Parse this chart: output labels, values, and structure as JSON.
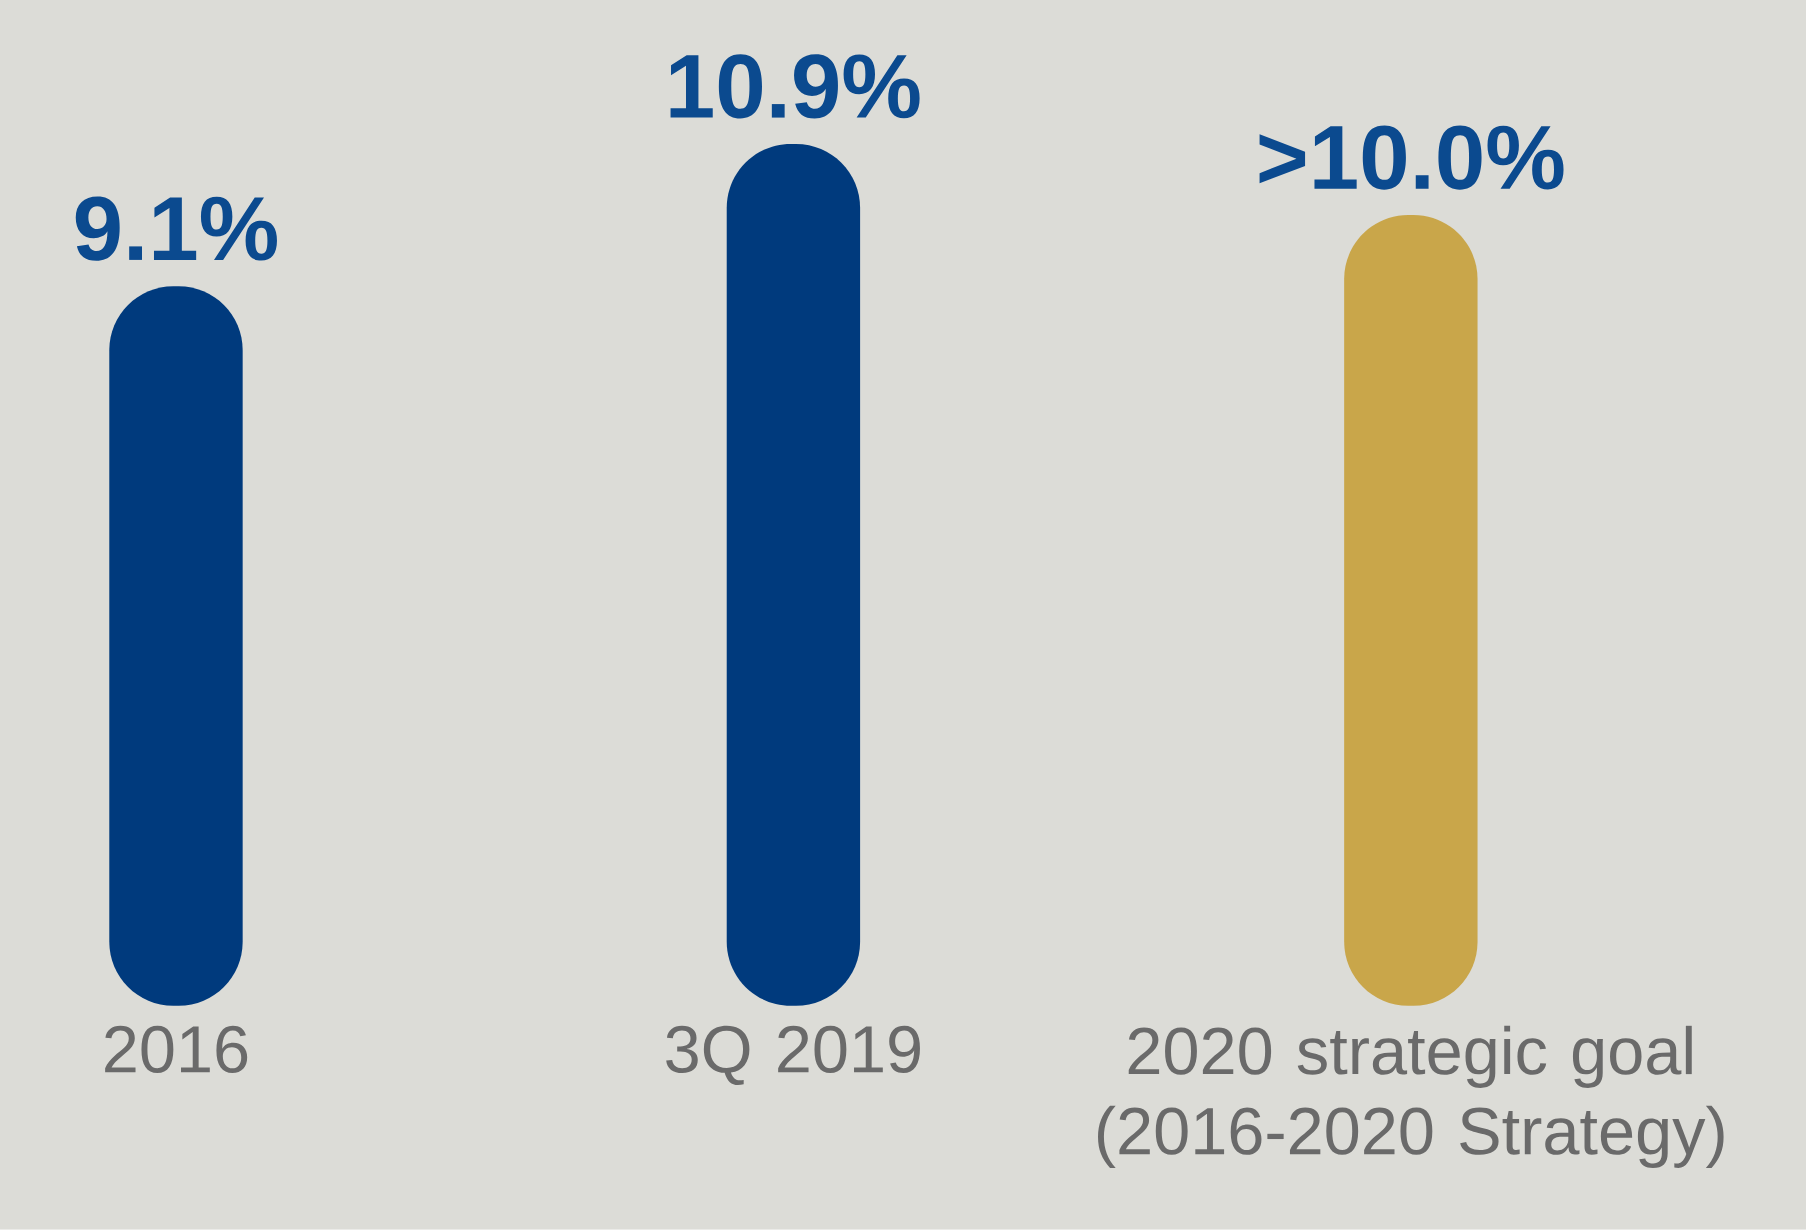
{
  "chart_data": {
    "type": "bar",
    "categories": [
      "2016",
      "3Q 2019",
      "2020 strategic goal (2016-2020 Strategy)"
    ],
    "values": [
      9.1,
      10.9,
      10.0
    ],
    "value_labels": [
      "9.1%",
      "10.9%",
      ">10.0%"
    ],
    "colors": [
      "#003a7d",
      "#003a7d",
      "#c9a64a"
    ]
  }
}
